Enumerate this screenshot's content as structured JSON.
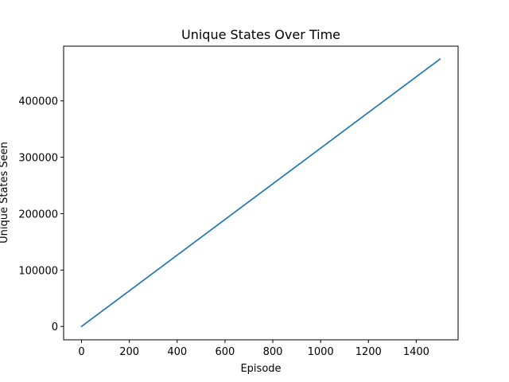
{
  "chart_data": {
    "type": "line",
    "title": "Unique States Over Time",
    "xlabel": "Episode",
    "ylabel": "Unique States Seen",
    "xlim": [
      -75,
      1575
    ],
    "ylim": [
      -23700,
      497000
    ],
    "xticks": [
      0,
      200,
      400,
      600,
      800,
      1000,
      1200,
      1400
    ],
    "yticks": [
      0,
      100000,
      200000,
      300000,
      400000
    ],
    "xtick_labels": [
      "0",
      "200",
      "400",
      "600",
      "800",
      "1000",
      "1200",
      "1400"
    ],
    "ytick_labels": [
      "0",
      "100000",
      "200000",
      "300000",
      "400000"
    ],
    "grid": false,
    "series": [
      {
        "color": "#1f77b4",
        "x": [
          0,
          1499
        ],
        "y": [
          0,
          474000
        ]
      }
    ]
  }
}
